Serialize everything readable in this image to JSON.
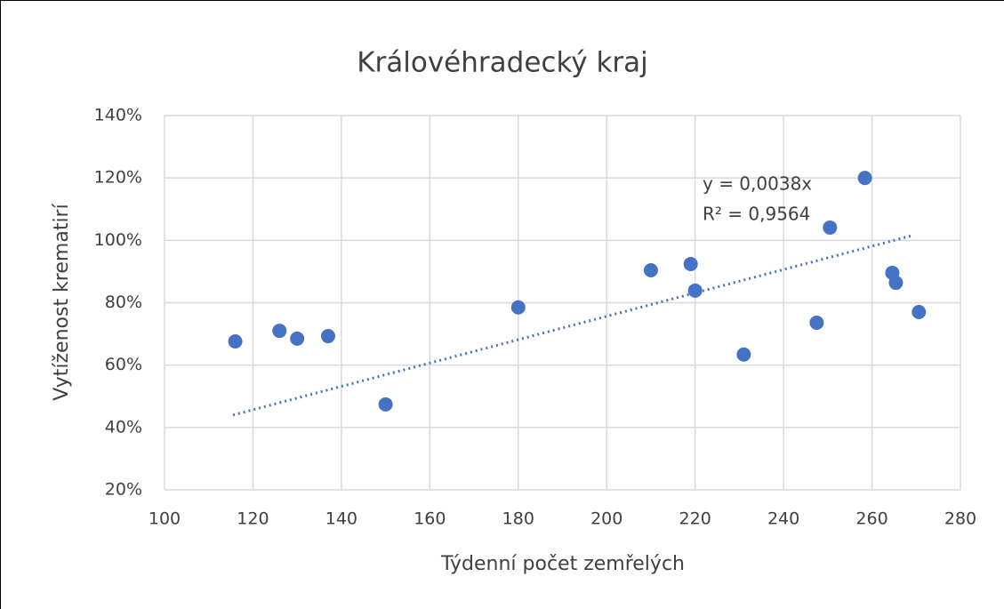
{
  "chart_data": {
    "type": "scatter",
    "title": "Královéhradecký kraj",
    "x_label": "Týdenní počet zemřelých",
    "y_label": "Vytíženost krematirí",
    "x": [
      116,
      126,
      130,
      137,
      150,
      180,
      210,
      219,
      220,
      231,
      247.5,
      250.5,
      258.4,
      264.6,
      265.4,
      270.6
    ],
    "values": [
      67.6,
      71,
      68.5,
      69.3,
      47.4,
      78.5,
      90.4,
      92.4,
      83.9,
      63.4,
      73.6,
      104.1,
      120,
      89.6,
      86.4,
      77
    ],
    "color": "#4472c4",
    "xlim": [
      100,
      280
    ],
    "xticks": [
      100,
      120,
      140,
      160,
      180,
      200,
      220,
      240,
      260,
      280
    ],
    "ylim": [
      20,
      140
    ],
    "yticks": [
      {
        "value": 20,
        "label": "20%"
      },
      {
        "value": 40,
        "label": "40%"
      },
      {
        "value": 60,
        "label": "60%"
      },
      {
        "value": 80,
        "label": "80%"
      },
      {
        "value": 100,
        "label": "100%"
      },
      {
        "value": 120,
        "label": "120%"
      },
      {
        "value": 140,
        "label": "140%"
      }
    ],
    "grid": true,
    "trendline": {
      "x": [
        115.5,
        269
      ],
      "y": [
        44,
        101.5
      ],
      "labels": [
        "y = 0,0038x",
        "R² = 0,9564"
      ]
    }
  }
}
